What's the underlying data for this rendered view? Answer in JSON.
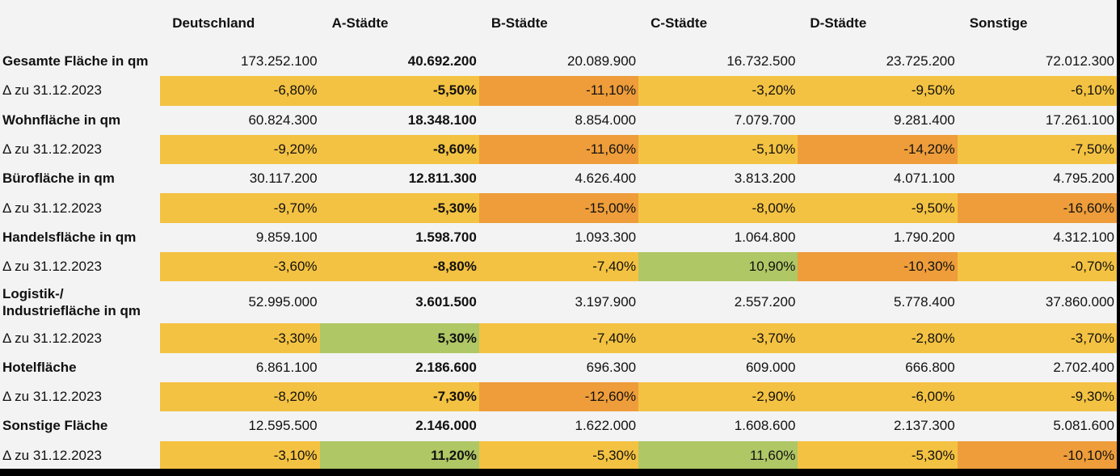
{
  "header": [
    "Deutschland",
    "A-Städte",
    "B-Städte",
    "C-Städte",
    "D-Städte",
    "Sonstige"
  ],
  "colors": {
    "yellow": "#f4c242",
    "orange": "#ee9d3a",
    "green": "#afc765"
  },
  "rows": [
    {
      "label": "Gesamte Fläche in qm",
      "values": [
        "173.252.100",
        "40.692.200",
        "20.089.900",
        "16.732.500",
        "23.725.200",
        "72.012.300"
      ]
    },
    {
      "label": "Δ zu 31.12.2023",
      "values": [
        "-6,80%",
        "-5,50%",
        "-11,10%",
        "-3,20%",
        "-9,50%",
        "-6,10%"
      ],
      "colors": [
        "yellow",
        "yellow",
        "orange",
        "yellow",
        "yellow",
        "yellow"
      ]
    },
    {
      "label": "Wohnfläche in qm",
      "values": [
        "60.824.300",
        "18.348.100",
        "8.854.000",
        "7.079.700",
        "9.281.400",
        "17.261.100"
      ]
    },
    {
      "label": "Δ zu 31.12.2023",
      "values": [
        "-9,20%",
        "-8,60%",
        "-11,60%",
        "-5,10%",
        "-14,20%",
        "-7,50%"
      ],
      "colors": [
        "yellow",
        "yellow",
        "orange",
        "yellow",
        "orange",
        "yellow"
      ]
    },
    {
      "label": "Bürofläche in qm",
      "values": [
        "30.117.200",
        "12.811.300",
        "4.626.400",
        "3.813.200",
        "4.071.100",
        "4.795.200"
      ]
    },
    {
      "label": "Δ zu 31.12.2023",
      "values": [
        "-9,70%",
        "-5,30%",
        "-15,00%",
        "-8,00%",
        "-9,50%",
        "-16,60%"
      ],
      "colors": [
        "yellow",
        "yellow",
        "orange",
        "yellow",
        "yellow",
        "orange"
      ]
    },
    {
      "label": "Handelsfläche in qm",
      "values": [
        "9.859.100",
        "1.598.700",
        "1.093.300",
        "1.064.800",
        "1.790.200",
        "4.312.100"
      ]
    },
    {
      "label": "Δ zu 31.12.2023",
      "values": [
        "-3,60%",
        "-8,80%",
        "-7,40%",
        "10,90%",
        "-10,30%",
        "-0,70%"
      ],
      "colors": [
        "yellow",
        "yellow",
        "yellow",
        "green",
        "orange",
        "yellow"
      ]
    },
    {
      "label": "Logistik-/ Industriefläche in qm",
      "values": [
        "52.995.000",
        "3.601.500",
        "3.197.900",
        "2.557.200",
        "5.778.400",
        "37.860.000"
      ],
      "tall": true
    },
    {
      "label": "Δ zu 31.12.2023",
      "values": [
        "-3,30%",
        "5,30%",
        "-7,40%",
        "-3,70%",
        "-2,80%",
        "-3,70%"
      ],
      "colors": [
        "yellow",
        "green",
        "yellow",
        "yellow",
        "yellow",
        "yellow"
      ]
    },
    {
      "label": "Hotelfläche",
      "values": [
        "6.861.100",
        "2.186.600",
        "696.300",
        "609.000",
        "666.800",
        "2.702.400"
      ]
    },
    {
      "label": "Δ zu 31.12.2023",
      "values": [
        "-8,20%",
        "-7,30%",
        "-12,60%",
        "-2,90%",
        "-6,00%",
        "-9,30%"
      ],
      "colors": [
        "yellow",
        "yellow",
        "orange",
        "yellow",
        "yellow",
        "yellow"
      ]
    },
    {
      "label": "Sonstige Fläche",
      "values": [
        "12.595.500",
        "2.146.000",
        "1.622.000",
        "1.608.600",
        "2.137.300",
        "5.081.600"
      ]
    },
    {
      "label": "Δ zu 31.12.2023",
      "values": [
        "-3,10%",
        "11,20%",
        "-5,30%",
        "11,60%",
        "-5,30%",
        "-10,10%"
      ],
      "colors": [
        "yellow",
        "green",
        "yellow",
        "green",
        "yellow",
        "orange"
      ]
    }
  ]
}
